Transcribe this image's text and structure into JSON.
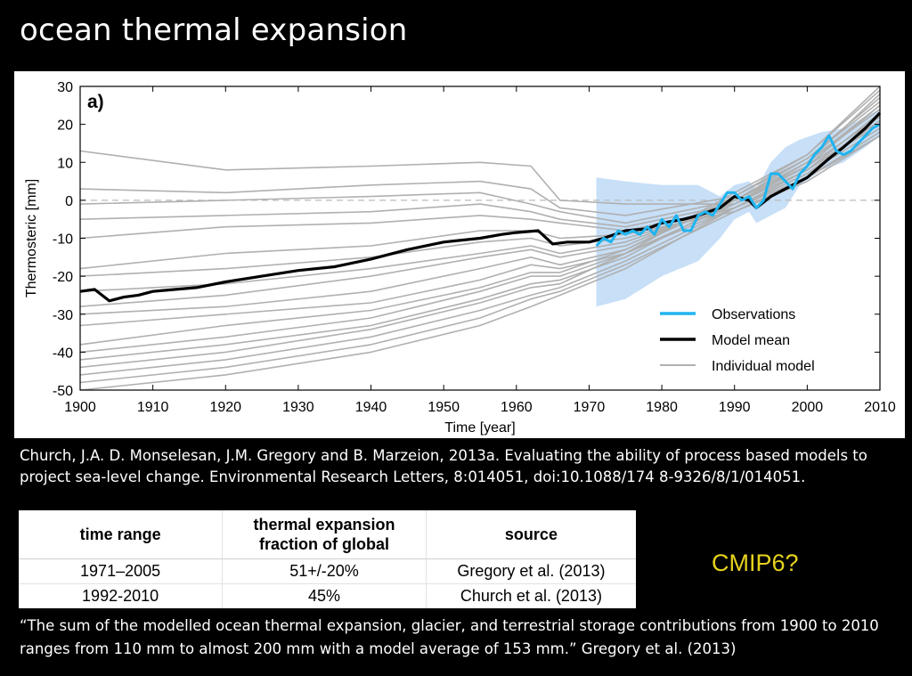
{
  "slide": {
    "title": "ocean thermal expansion",
    "citation": "Church, J.A. D. Monselesan, J.M. Gregory and B. Marzeion, 2013a. Evaluating the ability of process based models to project sea-level change. Environmental Research Letters, 8:014051, doi:10.1088/174 8-9326/8/1/014051.",
    "cmip_note": "CMIP6?",
    "quote": "“The sum of the modelled ocean thermal expansion, glacier, and terrestrial storage contributions from 1900 to 2010 ranges from 110 mm to almost 200 mm with a model average of 153 mm.” Gregory et al. (2013)"
  },
  "table": {
    "headers": [
      "time range",
      "thermal expansion fraction of global",
      "source"
    ],
    "rows": [
      [
        "1971–2005",
        "51+/-20%",
        "Gregory et al. (2013)"
      ],
      [
        "1992-2010",
        "45%",
        "Church et al. (2013)"
      ]
    ]
  },
  "colors": {
    "observations": "#1eb4f0",
    "model_mean": "#000000",
    "individual_model": "#b0b0b0",
    "obs_uncertainty": "#c7dff7",
    "cmip_note": "#e6d21e"
  },
  "chart_data": {
    "type": "line",
    "panel_label": "a)",
    "xlabel": "Time [year]",
    "ylabel": "Thermosteric [mm]",
    "xlim": [
      1900,
      2010
    ],
    "ylim": [
      -50,
      30
    ],
    "xticks": [
      1900,
      1910,
      1920,
      1930,
      1940,
      1950,
      1960,
      1970,
      1980,
      1990,
      2000,
      2010
    ],
    "yticks": [
      30,
      20,
      10,
      0,
      -10,
      -20,
      -30,
      -40,
      -50
    ],
    "legend": {
      "position": "bottom-right",
      "entries": [
        "Observations",
        "Model mean",
        "Individual model"
      ]
    },
    "reference_line": 0,
    "model_mean": {
      "name": "Model mean",
      "x": [
        1900,
        1902,
        1904,
        1906,
        1908,
        1910,
        1913,
        1916,
        1920,
        1925,
        1930,
        1935,
        1940,
        1945,
        1950,
        1955,
        1958,
        1960,
        1963,
        1965,
        1967,
        1970,
        1972,
        1975,
        1978,
        1980,
        1983,
        1985,
        1988,
        1990,
        1992,
        1993,
        1995,
        1998,
        2000,
        2003,
        2005,
        2008,
        2010
      ],
      "y": [
        -24,
        -23.5,
        -26.5,
        -25.5,
        -25,
        -24,
        -23.5,
        -23,
        -21.5,
        -20,
        -18.5,
        -17.5,
        -15.5,
        -13,
        -11,
        -10,
        -9,
        -8.5,
        -8,
        -11.5,
        -11,
        -11,
        -10,
        -8,
        -7.5,
        -6,
        -5,
        -4,
        -2,
        1,
        0,
        -2,
        1,
        4,
        6,
        11,
        14,
        19,
        23
      ]
    },
    "observations": {
      "name": "Observations",
      "x": [
        1971,
        1972,
        1973,
        1974,
        1975,
        1976,
        1977,
        1978,
        1979,
        1980,
        1981,
        1982,
        1983,
        1984,
        1985,
        1986,
        1987,
        1988,
        1989,
        1990,
        1991,
        1992,
        1993,
        1994,
        1995,
        1996,
        1997,
        1998,
        1999,
        2000,
        2001,
        2002,
        2003,
        2004,
        2005,
        2006,
        2007,
        2008,
        2009,
        2010
      ],
      "y": [
        -12,
        -10,
        -11,
        -8,
        -9,
        -8,
        -9,
        -7,
        -9,
        -5,
        -7,
        -4,
        -8,
        -8,
        -4,
        -3,
        -4,
        -1,
        2,
        2,
        0,
        1,
        -2,
        0,
        7,
        7,
        5,
        3,
        7,
        9,
        12,
        14,
        17,
        13,
        12,
        13,
        15,
        17,
        19,
        20
      ]
    },
    "observation_uncertainty": {
      "x": [
        1971,
        1975,
        1980,
        1985,
        1988,
        1990,
        1992,
        1993,
        1995,
        1997,
        1999,
        2002,
        2005,
        2008,
        2010
      ],
      "upper": [
        6,
        5,
        4,
        4,
        1,
        4,
        5,
        3,
        10,
        14,
        16,
        18,
        19,
        22,
        24
      ],
      "lower": [
        -28,
        -26,
        -20,
        -16,
        -10,
        -5,
        -3,
        -6,
        -4,
        -2,
        4,
        8,
        10,
        14,
        17
      ]
    },
    "individual_models": [
      {
        "x": [
          1900,
          1920,
          1940,
          1955,
          1962,
          1966,
          1975,
          1990,
          2000,
          2010
        ],
        "y": [
          13,
          8,
          9,
          10,
          9,
          0,
          -1,
          -1,
          10,
          24
        ]
      },
      {
        "x": [
          1900,
          1920,
          1940,
          1955,
          1962,
          1966,
          1975,
          1990,
          2000,
          2010
        ],
        "y": [
          3,
          2,
          4,
          5,
          3,
          -2,
          -4,
          1,
          11,
          27
        ]
      },
      {
        "x": [
          1900,
          1920,
          1940,
          1955,
          1962,
          1966,
          1975,
          1990,
          2000,
          2010
        ],
        "y": [
          -1,
          0,
          1,
          2,
          -1,
          -3,
          -6,
          0,
          9,
          22
        ]
      },
      {
        "x": [
          1900,
          1920,
          1940,
          1955,
          1962,
          1966,
          1975,
          1990,
          2000,
          2010
        ],
        "y": [
          -5,
          -4,
          -3,
          -1,
          -3,
          -5,
          -7,
          -1,
          8,
          20
        ]
      },
      {
        "x": [
          1900,
          1920,
          1940,
          1955,
          1962,
          1966,
          1975,
          1990,
          2000,
          2010
        ],
        "y": [
          -10,
          -7,
          -6,
          -4,
          -5,
          -6,
          -8,
          -2,
          6,
          18
        ]
      },
      {
        "x": [
          1900,
          1920,
          1940,
          1955,
          1962,
          1966,
          1975,
          1990,
          2000,
          2010
        ],
        "y": [
          -18,
          -14,
          -12,
          -8,
          -8,
          -10,
          -9,
          -3,
          5,
          17
        ]
      },
      {
        "x": [
          1900,
          1920,
          1940,
          1955,
          1962,
          1966,
          1975,
          1990,
          2000,
          2010
        ],
        "y": [
          -20,
          -18,
          -15,
          -11,
          -10,
          -12,
          -10,
          -2,
          7,
          21
        ]
      },
      {
        "x": [
          1900,
          1920,
          1940,
          1955,
          1962,
          1966,
          1975,
          1990,
          2000,
          2010
        ],
        "y": [
          -24,
          -22,
          -18,
          -14,
          -12,
          -14,
          -11,
          -1,
          9,
          25
        ]
      },
      {
        "x": [
          1900,
          1920,
          1940,
          1955,
          1962,
          1966,
          1975,
          1990,
          2000,
          2010
        ],
        "y": [
          -28,
          -25,
          -20,
          -15,
          -13,
          -15,
          -12,
          0,
          10,
          28
        ]
      },
      {
        "x": [
          1900,
          1920,
          1940,
          1955,
          1962,
          1966,
          1975,
          1990,
          2000,
          2010
        ],
        "y": [
          -30,
          -28,
          -24,
          -18,
          -15,
          -17,
          -13,
          1,
          12,
          30
        ]
      },
      {
        "x": [
          1900,
          1920,
          1940,
          1955,
          1962,
          1966,
          1975,
          1990,
          2000,
          2010
        ],
        "y": [
          -33,
          -30,
          -27,
          -21,
          -17,
          -18,
          -14,
          -2,
          8,
          23
        ]
      },
      {
        "x": [
          1900,
          1920,
          1940,
          1955,
          1962,
          1966,
          1975,
          1990,
          2000,
          2010
        ],
        "y": [
          -38,
          -33,
          -29,
          -23,
          -19,
          -19,
          -13,
          0,
          10,
          25
        ]
      },
      {
        "x": [
          1900,
          1920,
          1940,
          1955,
          1962,
          1966,
          1975,
          1990,
          2000,
          2010
        ],
        "y": [
          -40,
          -36,
          -31,
          -24,
          -20,
          -20,
          -14,
          -1,
          9,
          22
        ]
      },
      {
        "x": [
          1900,
          1920,
          1940,
          1955,
          1962,
          1966,
          1975,
          1990,
          2000,
          2010
        ],
        "y": [
          -42,
          -38,
          -33,
          -26,
          -22,
          -21,
          -15,
          0,
          11,
          26
        ]
      },
      {
        "x": [
          1900,
          1920,
          1940,
          1955,
          1962,
          1966,
          1975,
          1990,
          2000,
          2010
        ],
        "y": [
          -44,
          -40,
          -34,
          -27,
          -23,
          -22,
          -14,
          2,
          12,
          29
        ]
      },
      {
        "x": [
          1900,
          1920,
          1940,
          1955,
          1962,
          1966,
          1975,
          1990,
          2000,
          2010
        ],
        "y": [
          -46,
          -42,
          -36,
          -29,
          -25,
          -23,
          -16,
          -2,
          7,
          19
        ]
      },
      {
        "x": [
          1900,
          1920,
          1940,
          1955,
          1962,
          1966,
          1975,
          1990,
          2000,
          2010
        ],
        "y": [
          -48,
          -44,
          -38,
          -31,
          -26,
          -24,
          -17,
          -3,
          6,
          17
        ]
      },
      {
        "x": [
          1900,
          1920,
          1940,
          1955,
          1962,
          1966,
          1975,
          1990,
          2000,
          2010
        ],
        "y": [
          -50,
          -46,
          -40,
          -33,
          -28,
          -25,
          -18,
          -2,
          8,
          21
        ]
      }
    ]
  }
}
